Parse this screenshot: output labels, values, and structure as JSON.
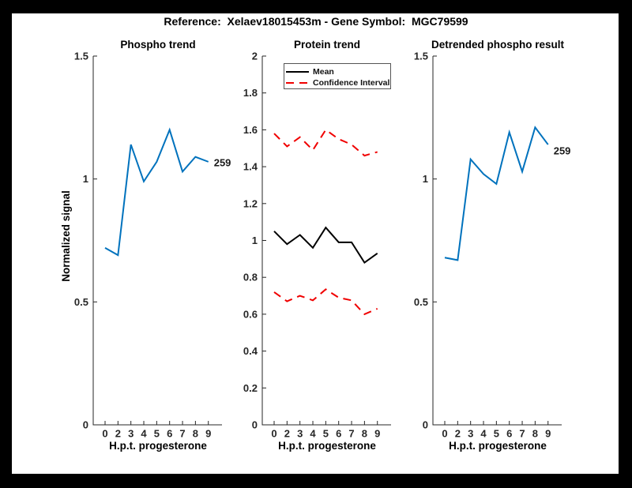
{
  "figure": {
    "title": "Reference:  Xelaev18015453m - Gene Symbol:  MGC79599",
    "background": "#ffffff",
    "frame_color": "#000000"
  },
  "chart_data": [
    {
      "type": "line",
      "title": "Phospho trend",
      "xlabel": "H.p.t. progesterone",
      "ylabel": "Normalized signal",
      "xticklabels": [
        "0",
        "2",
        "3",
        "4",
        "5",
        "6",
        "7",
        "8",
        "9"
      ],
      "ytick_labels": [
        "0",
        "0.5",
        "1",
        "1.5"
      ],
      "yticks": [
        0,
        0.5,
        1,
        1.5
      ],
      "ylim": [
        0,
        1.5
      ],
      "grid": false,
      "series": [
        {
          "name": "phospho-signal",
          "color": "#0072BD",
          "style": "solid",
          "values": [
            0.72,
            0.69,
            1.14,
            0.99,
            1.07,
            1.2,
            1.03,
            1.09,
            1.07
          ]
        }
      ],
      "annotation": {
        "text": "259"
      }
    },
    {
      "type": "line",
      "title": "Protein trend",
      "xlabel": "H.p.t. progesterone",
      "ylabel": "",
      "xticklabels": [
        "0",
        "2",
        "3",
        "4",
        "5",
        "6",
        "7",
        "8",
        "9"
      ],
      "ytick_labels": [
        "0",
        "0.2",
        "0.4",
        "0.6",
        "0.8",
        "1",
        "1.2",
        "1.4",
        "1.6",
        "1.8",
        "2"
      ],
      "yticks": [
        0,
        0.2,
        0.4,
        0.6,
        0.8,
        1,
        1.2,
        1.4,
        1.6,
        1.8,
        2
      ],
      "ylim": [
        0,
        2
      ],
      "grid": false,
      "legend": {
        "position": "northwest",
        "entries": [
          {
            "label": "Mean",
            "color": "#000000",
            "style": "solid"
          },
          {
            "label": "Confidence Interval",
            "color": "#f00000",
            "style": "dashed"
          }
        ]
      },
      "series": [
        {
          "name": "mean",
          "color": "#000000",
          "style": "solid",
          "values": [
            1.05,
            0.98,
            1.03,
            0.96,
            1.07,
            0.99,
            0.99,
            0.88,
            0.93
          ]
        },
        {
          "name": "ci-upper",
          "color": "#f00000",
          "style": "dashed",
          "values": [
            1.58,
            1.51,
            1.56,
            1.49,
            1.6,
            1.55,
            1.52,
            1.46,
            1.48
          ]
        },
        {
          "name": "ci-lower",
          "color": "#f00000",
          "style": "dashed",
          "values": [
            0.72,
            0.67,
            0.7,
            0.675,
            0.735,
            0.69,
            0.675,
            0.6,
            0.63
          ]
        }
      ]
    },
    {
      "type": "line",
      "title": "Detrended phospho result",
      "xlabel": "H.p.t. progesterone",
      "ylabel": "",
      "xticklabels": [
        "0",
        "2",
        "3",
        "4",
        "5",
        "6",
        "7",
        "8",
        "9"
      ],
      "ytick_labels": [
        "0",
        "0.5",
        "1",
        "1.5"
      ],
      "yticks": [
        0,
        0.5,
        1,
        1.5
      ],
      "ylim": [
        0,
        1.5
      ],
      "grid": false,
      "series": [
        {
          "name": "detrended-phospho",
          "color": "#0072BD",
          "style": "solid",
          "values": [
            0.68,
            0.67,
            1.08,
            1.02,
            0.98,
            1.19,
            1.03,
            1.21,
            1.14
          ]
        }
      ],
      "annotation": {
        "text": "259"
      }
    }
  ]
}
